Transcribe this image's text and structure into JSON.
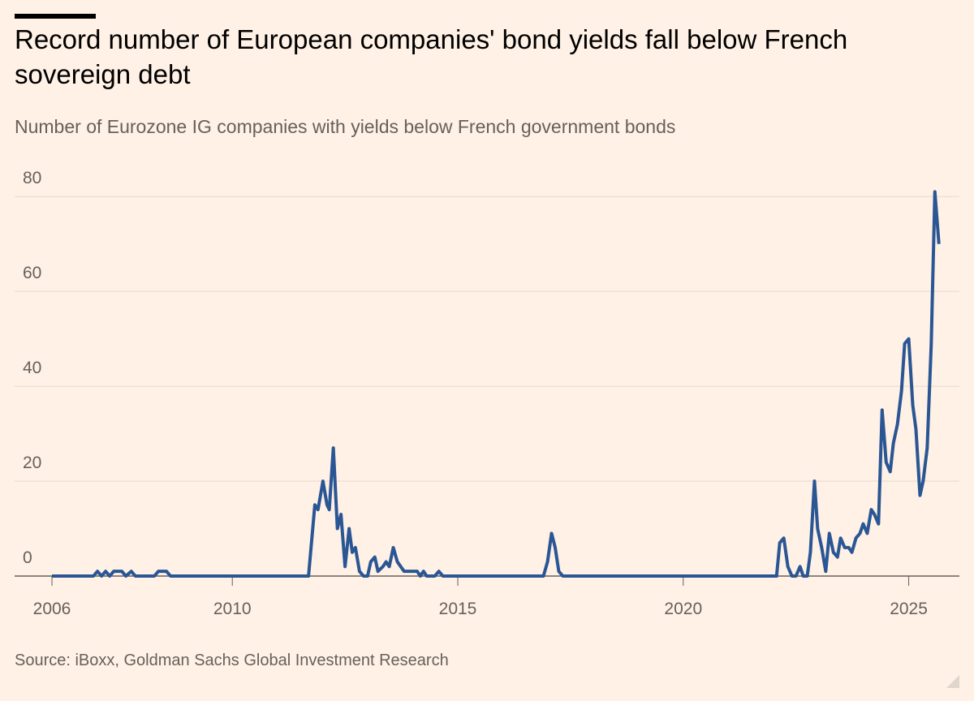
{
  "chart_data": {
    "type": "line",
    "title": [
      "Record number of European companies' bond yields fall below French",
      "sovereign debt"
    ],
    "subtitle": "Number of Eurozone IG companies with yields below French government bonds",
    "source": "Source: iBoxx, Goldman Sachs Global Investment Research",
    "xlim": [
      2006,
      2025.8
    ],
    "xticks": [
      2006,
      2010,
      2015,
      2020,
      2025
    ],
    "ylim": [
      0,
      85
    ],
    "yticks": [
      0,
      20,
      40,
      60,
      80
    ],
    "grid": true,
    "series": [
      {
        "color": "#2a5694",
        "x": [
          2006,
          2006.92,
          2007.01,
          2007.1,
          2007.19,
          2007.28,
          2007.37,
          2007.55,
          2007.64,
          2007.76,
          2007.85,
          2008.27,
          2008.36,
          2008.54,
          2008.63,
          2011.69,
          2011.83,
          2011.9,
          2012.01,
          2012.1,
          2012.15,
          2012.24,
          2012.33,
          2012.41,
          2012.5,
          2012.59,
          2012.66,
          2012.73,
          2012.82,
          2012.91,
          2013.0,
          2013.07,
          2013.16,
          2013.23,
          2013.34,
          2013.41,
          2013.48,
          2013.57,
          2013.66,
          2013.81,
          2014.1,
          2014.17,
          2014.24,
          2014.31,
          2014.49,
          2014.58,
          2014.67,
          2016.9,
          2016.99,
          2017.08,
          2017.16,
          2017.24,
          2017.33,
          2022.07,
          2022.14,
          2022.23,
          2022.32,
          2022.41,
          2022.5,
          2022.59,
          2022.66,
          2022.75,
          2022.82,
          2022.91,
          2022.98,
          2023.07,
          2023.16,
          2023.24,
          2023.33,
          2023.42,
          2023.49,
          2023.58,
          2023.67,
          2023.74,
          2023.83,
          2023.92,
          2023.99,
          2024.08,
          2024.17,
          2024.24,
          2024.33,
          2024.41,
          2024.5,
          2024.59,
          2024.66,
          2024.75,
          2024.84,
          2024.91,
          2025.0,
          2025.09,
          2025.16,
          2025.25,
          2025.32,
          2025.41,
          2025.5,
          2025.58,
          2025.67
        ],
        "values": [
          0,
          0,
          1,
          0,
          1,
          0,
          1,
          1,
          0,
          1,
          0,
          0,
          1,
          1,
          0,
          0,
          15,
          14,
          20,
          15,
          14,
          27,
          10,
          13,
          2,
          10,
          5,
          6,
          1,
          0,
          0,
          3,
          4,
          1,
          2,
          3,
          2,
          6,
          3,
          1,
          1,
          0,
          1,
          0,
          0,
          1,
          0,
          0,
          3,
          9,
          6,
          1,
          0,
          0,
          7,
          8,
          2,
          0,
          0,
          2,
          0,
          0,
          5,
          20,
          10,
          6,
          1,
          9,
          5,
          4,
          8,
          6,
          6,
          5,
          8,
          9,
          11,
          9,
          14,
          13,
          11,
          35,
          24,
          22,
          28,
          32,
          39,
          49,
          50,
          36,
          31,
          17,
          20,
          27,
          49,
          81,
          70
        ]
      }
    ]
  }
}
